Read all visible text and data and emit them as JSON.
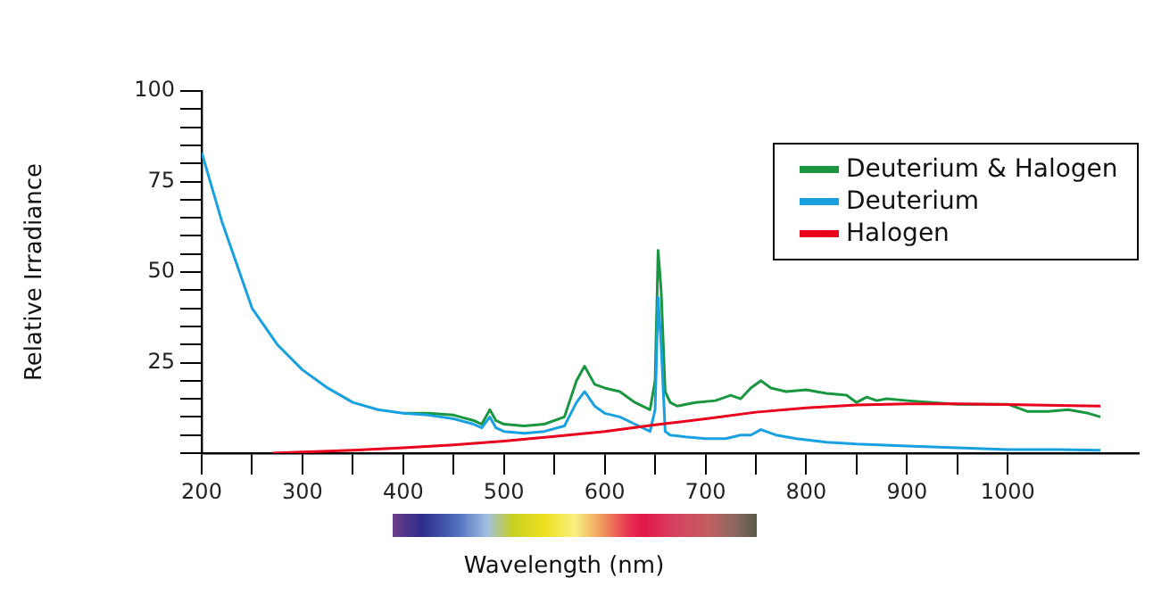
{
  "chart_data": {
    "type": "line",
    "xlabel": "Wavelength (nm)",
    "ylabel": "Relative Irradiance",
    "xlim": [
      200,
      1130
    ],
    "ylim": [
      0,
      100
    ],
    "xticks": [
      200,
      {
        "value": 250,
        "label": null
      },
      300,
      {
        "value": 350,
        "label": null
      },
      400,
      {
        "value": 450,
        "label": null
      },
      500,
      {
        "value": 550,
        "label": null
      },
      600,
      {
        "value": 650,
        "label": null
      },
      700,
      {
        "value": 750,
        "label": null
      },
      800,
      {
        "value": 850,
        "label": null
      },
      900,
      {
        "value": 950,
        "label": null
      },
      1000
    ],
    "yticks": [
      {
        "value": 0,
        "label": null
      },
      {
        "value": 5,
        "label": null
      },
      {
        "value": 10,
        "label": null
      },
      {
        "value": 15,
        "label": null
      },
      {
        "value": 20,
        "label": null
      },
      25,
      {
        "value": 30,
        "label": null
      },
      {
        "value": 35,
        "label": null
      },
      {
        "value": 40,
        "label": null
      },
      {
        "value": 45,
        "label": null
      },
      50,
      {
        "value": 55,
        "label": null
      },
      {
        "value": 60,
        "label": null
      },
      {
        "value": 65,
        "label": null
      },
      {
        "value": 70,
        "label": null
      },
      75,
      {
        "value": 80,
        "label": null
      },
      {
        "value": 85,
        "label": null
      },
      {
        "value": 90,
        "label": null
      },
      {
        "value": 95,
        "label": null
      },
      100
    ],
    "grid": false,
    "legend": "top right",
    "marker": "none",
    "line_style": "solid",
    "series": [
      {
        "name": "Deuterium & Halogen",
        "color": "#1a9640",
        "x": [
          400,
          425,
          450,
          470,
          478,
          486,
          492,
          500,
          520,
          540,
          560,
          572,
          580,
          590,
          600,
          615,
          630,
          645,
          650,
          653,
          656,
          660,
          665,
          672,
          690,
          710,
          725,
          735,
          745,
          755,
          765,
          780,
          800,
          820,
          840,
          850,
          860,
          870,
          880,
          900,
          950,
          1000,
          1020,
          1040,
          1060,
          1080,
          1092
        ],
        "values": [
          11,
          11,
          10.5,
          9,
          8,
          12,
          9,
          8,
          7.5,
          8,
          10,
          20,
          24,
          19,
          18,
          17,
          14,
          12,
          20,
          56,
          45,
          17,
          14,
          13,
          14,
          14.5,
          16,
          15,
          18,
          20,
          18,
          17,
          17.5,
          16.5,
          16,
          14,
          15.5,
          14.5,
          15,
          14.5,
          13.5,
          13.5,
          11.5,
          11.5,
          12,
          11,
          10
        ]
      },
      {
        "name": "Deuterium",
        "color": "#18a0e0",
        "x": [
          200,
          220,
          250,
          275,
          300,
          325,
          350,
          375,
          400,
          425,
          450,
          470,
          478,
          486,
          492,
          500,
          520,
          540,
          560,
          572,
          580,
          590,
          600,
          615,
          630,
          645,
          650,
          653,
          656,
          660,
          665,
          680,
          700,
          720,
          735,
          745,
          755,
          770,
          790,
          820,
          850,
          900,
          950,
          1000,
          1050,
          1092
        ],
        "values": [
          83,
          64,
          40,
          30,
          23,
          18,
          14,
          12,
          11,
          10.5,
          9.5,
          8,
          7,
          10,
          7,
          6,
          5.5,
          6,
          7.5,
          14,
          17,
          13,
          11,
          10,
          8,
          6,
          12,
          43,
          30,
          6,
          5,
          4.5,
          4,
          4,
          5,
          5,
          6.5,
          5,
          4,
          3,
          2.5,
          2,
          1.5,
          1,
          1,
          0.8
        ]
      },
      {
        "name": "Halogen",
        "color": "#e8001c",
        "x": [
          270,
          300,
          350,
          400,
          450,
          500,
          550,
          600,
          650,
          700,
          750,
          800,
          850,
          900,
          950,
          1000,
          1050,
          1092
        ],
        "values": [
          0,
          0.3,
          0.8,
          1.5,
          2.3,
          3.3,
          4.6,
          6,
          7.8,
          9.5,
          11.3,
          12.5,
          13.3,
          13.6,
          13.6,
          13.4,
          13.2,
          13
        ]
      }
    ]
  }
}
